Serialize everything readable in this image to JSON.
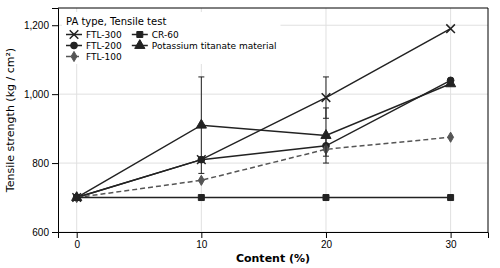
{
  "chart_data": {
    "type": "line",
    "title": "PA type, Tensile test",
    "xlabel": "Content (%)",
    "ylabel": "Tensile strength (kg / cm²)",
    "x": [
      0,
      10,
      20,
      30
    ],
    "xlim": [
      -1.5,
      33
    ],
    "ylim": [
      600,
      1250
    ],
    "xticks": [
      0,
      10,
      20,
      30
    ],
    "yticks": [
      600,
      800,
      {
        "value": 1000,
        "label": "1,000"
      },
      {
        "value": 1200,
        "label": "1,200"
      }
    ],
    "grid": true,
    "legend": "upper left",
    "series": [
      {
        "name": "FTL-300",
        "color": "#222222",
        "marker": "x",
        "line_style": "solid",
        "values": [
          700,
          810,
          990,
          1190
        ],
        "errors": [
          0,
          0,
          60,
          0
        ]
      },
      {
        "name": "FTL-200",
        "color": "#222222",
        "marker": "circle",
        "line_style": "solid",
        "values": [
          700,
          810,
          850,
          1040
        ],
        "errors": [
          0,
          0,
          30,
          0
        ]
      },
      {
        "name": "FTL-100",
        "color": "#555555",
        "marker": "diamond",
        "line_style": "dashed",
        "values": [
          700,
          750,
          840,
          875
        ],
        "errors": [
          0,
          0,
          0,
          0
        ]
      },
      {
        "name": "CR-60",
        "color": "#222222",
        "marker": "square",
        "line_style": "solid",
        "values": [
          700,
          700,
          700,
          700
        ],
        "errors": [
          0,
          0,
          0,
          0
        ]
      },
      {
        "name": "Potassium titanate material",
        "color": "#222222",
        "marker": "triangle",
        "line_style": "solid",
        "values": [
          700,
          910,
          880,
          1030
        ],
        "errors": [
          0,
          140,
          80,
          0
        ]
      }
    ]
  }
}
